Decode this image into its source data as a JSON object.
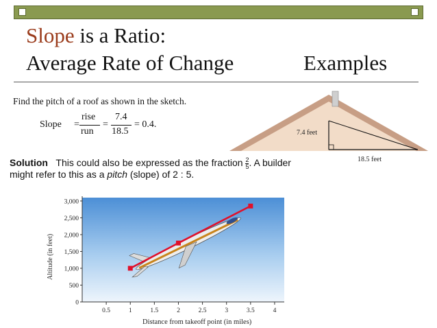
{
  "slide": {
    "title_accent": "Slope",
    "title_rest": " is a Ratio:",
    "title_line2": "Average Rate of Change",
    "examples": "Examples"
  },
  "roof_example": {
    "prompt": "Find the pitch of a roof as shown in the sketch.",
    "slope_label": "Slope",
    "eq1": "=",
    "numerator_word": "rise",
    "denominator_word": "run",
    "eq2": "=",
    "numerator_value": "7.4",
    "denominator_value": "18.5",
    "result": "= 0.4.",
    "rise_label": "7.4 feet",
    "run_label": "18.5 feet"
  },
  "solution": {
    "label": "Solution",
    "text_before_fraction": "This could also be expressed as the fraction",
    "fraction_num": "2",
    "fraction_den": "5",
    "text_after_fraction": ". A builder",
    "line2_before": "might refer to this as a ",
    "line2_italic": "pitch",
    "line2_after": " (slope) of 2 : 5."
  },
  "chart_data": {
    "type": "line",
    "xlabel": "Distance from takeoff point (in miles)",
    "ylabel": "Altitude (in feet)",
    "x_ticks": [
      "0.5",
      "1",
      "1.5",
      "2",
      "2.5",
      "3",
      "3.5",
      "4"
    ],
    "y_ticks": [
      "0",
      "500",
      "1,000",
      "1,500",
      "2,000",
      "2,500",
      "3,000"
    ],
    "xlim": [
      0,
      4.2
    ],
    "ylim": [
      0,
      3100
    ],
    "series": [
      {
        "color": "#e0102a",
        "x": [
          1,
          2,
          3.5
        ],
        "y": [
          1000,
          1750,
          2850
        ]
      }
    ],
    "grid": false
  }
}
